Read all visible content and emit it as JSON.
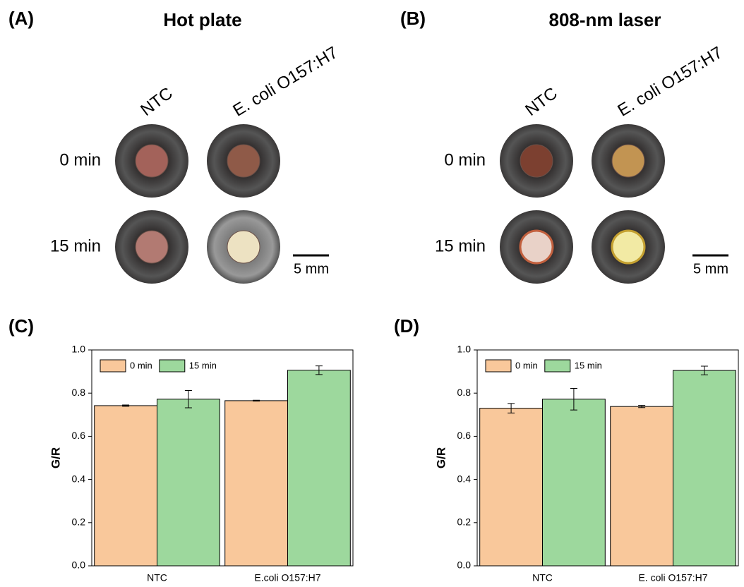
{
  "panels": [
    {
      "label": "(A)",
      "title": "Hot plate",
      "columns": [
        "NTC",
        "E. coli O157:H7"
      ],
      "rows": [
        "0 min",
        "15 min"
      ],
      "scale_bar": "5 mm"
    },
    {
      "label": "(B)",
      "title": "808-nm laser",
      "columns": [
        "NTC",
        "E. coli O157:H7"
      ],
      "rows": [
        "0 min",
        "15 min"
      ],
      "scale_bar": "5 mm"
    }
  ],
  "chart_data": [
    {
      "type": "bar",
      "panel_label": "(C)",
      "y_label": "G/R",
      "categories": [
        "NTC",
        "E.coli O157:H7"
      ],
      "series": [
        {
          "name": "0 min",
          "color": "#f9c89b",
          "values": [
            0.742,
            0.765
          ],
          "errors": [
            0.003,
            0.002
          ]
        },
        {
          "name": "15 min",
          "color": "#9dd89d",
          "values": [
            0.772,
            0.906
          ],
          "errors": [
            0.04,
            0.02
          ]
        }
      ],
      "ylim": [
        0,
        1
      ],
      "yticks": [
        {
          "value": 0,
          "label": "0.0"
        },
        0.2,
        0.4,
        0.6,
        0.8,
        {
          "value": 1,
          "label": "1.0"
        }
      ],
      "legend": "upper left"
    },
    {
      "type": "bar",
      "panel_label": "(D)",
      "y_label": "G/R",
      "categories": [
        "NTC",
        "E. coli O157:H7"
      ],
      "series": [
        {
          "name": "0 min",
          "color": "#f9c89b",
          "values": [
            0.73,
            0.738
          ],
          "errors": [
            0.022,
            0.005
          ]
        },
        {
          "name": "15 min",
          "color": "#9dd89d",
          "values": [
            0.772,
            0.905
          ],
          "errors": [
            0.05,
            0.02
          ]
        }
      ],
      "ylim": [
        0,
        1
      ],
      "yticks": [
        {
          "value": 0,
          "label": "0.0"
        },
        0.2,
        0.4,
        0.6,
        0.8,
        {
          "value": 1,
          "label": "1.0"
        }
      ],
      "legend": "upper left"
    }
  ]
}
